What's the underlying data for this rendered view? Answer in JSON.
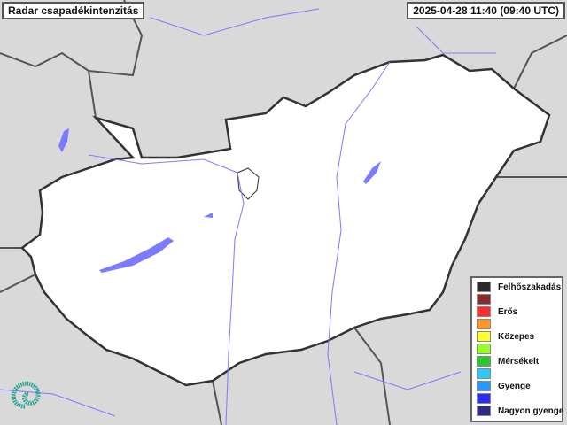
{
  "header": {
    "title": "Radar csapadékintenzitás",
    "timestamp": "2025-04-28 11:40 (09:40 UTC)"
  },
  "map": {
    "country_fill": "#ffffff",
    "surroundings_fill": "#d9d9d9",
    "water_color": "#7b7bff",
    "border_color": "#333333"
  },
  "legend": {
    "items": [
      {
        "label": "Felhőszakadás",
        "color": "#2b2b2b"
      },
      {
        "label": "",
        "color": "#8b2a2a"
      },
      {
        "label": "Erős",
        "color": "#ff2a2a"
      },
      {
        "label": "",
        "color": "#ff962a"
      },
      {
        "label": "Közepes",
        "color": "#ffff2a"
      },
      {
        "label": "",
        "color": "#96ff2a"
      },
      {
        "label": "Mérsékelt",
        "color": "#2ac82a"
      },
      {
        "label": "",
        "color": "#2ac8ff"
      },
      {
        "label": "Gyenge",
        "color": "#2a96ff"
      },
      {
        "label": "",
        "color": "#2a2aff"
      },
      {
        "label": "Nagyon gyenge",
        "color": "#2a2a8b"
      }
    ]
  },
  "logo": {
    "icon": "swirl-logo-icon"
  }
}
